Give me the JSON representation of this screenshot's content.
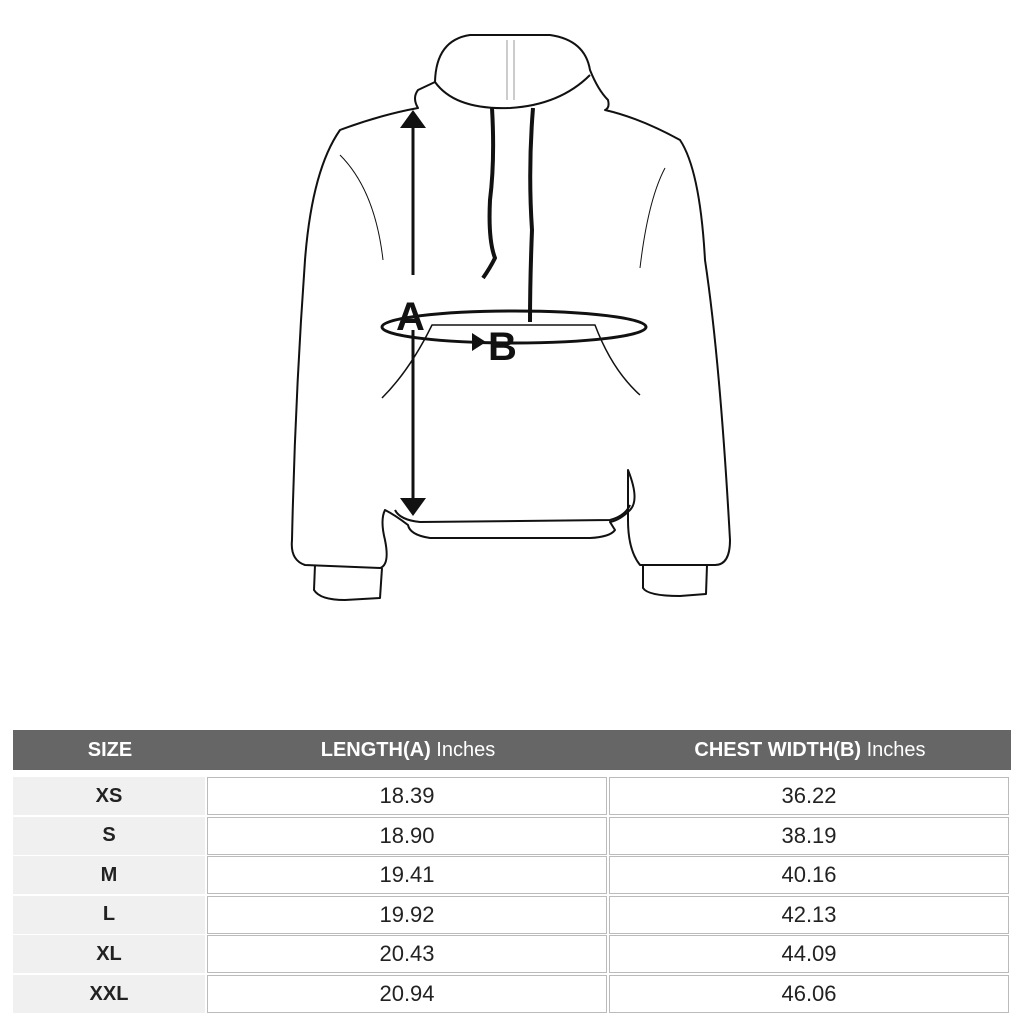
{
  "diagram": {
    "label_a": "A",
    "label_b": "B"
  },
  "table": {
    "headers": {
      "size": "SIZE",
      "length": "LENGTH(A)",
      "length_unit": "Inches",
      "chest": "CHEST WIDTH(B)",
      "chest_unit": "Inches"
    },
    "rows": [
      {
        "size": "XS",
        "length": "18.39",
        "chest": "36.22"
      },
      {
        "size": "S",
        "length": "18.90",
        "chest": "38.19"
      },
      {
        "size": "M",
        "length": "19.41",
        "chest": "40.16"
      },
      {
        "size": "L",
        "length": "19.92",
        "chest": "42.13"
      },
      {
        "size": "XL",
        "length": "20.43",
        "chest": "44.09"
      },
      {
        "size": "XXL",
        "length": "20.94",
        "chest": "46.06"
      }
    ]
  }
}
